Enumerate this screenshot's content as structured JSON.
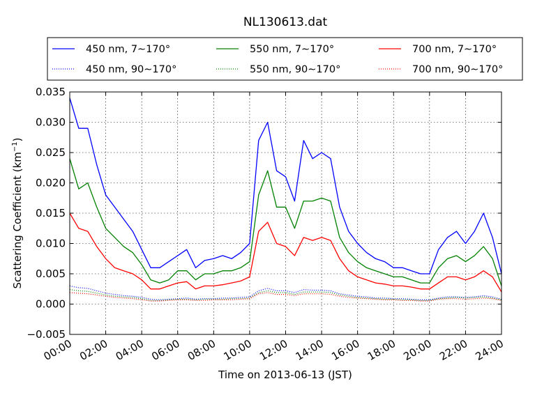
{
  "chart_data": {
    "type": "line",
    "title": "NL130613.dat",
    "xlabel": "Time on 2013-06-13 (JST)",
    "ylabel_prefix": "Scattering Coefficient (km",
    "ylabel_sup": "−1",
    "ylabel_suffix": ")",
    "xlim": [
      0,
      24
    ],
    "ylim": [
      -0.005,
      0.035
    ],
    "grid": true,
    "legend_position": "above plot, 3 columns",
    "x_ticks": [
      "00:00",
      "02:00",
      "04:00",
      "06:00",
      "08:00",
      "10:00",
      "12:00",
      "14:00",
      "16:00",
      "18:00",
      "20:00",
      "22:00",
      "24:00"
    ],
    "y_ticks": [
      "−0.005",
      "0.000",
      "0.005",
      "0.010",
      "0.015",
      "0.020",
      "0.025",
      "0.030",
      "0.035"
    ],
    "x": [
      0,
      0.5,
      1,
      1.5,
      2,
      2.5,
      3,
      3.5,
      4,
      4.5,
      5,
      5.5,
      6,
      6.5,
      7,
      7.5,
      8,
      8.5,
      9,
      9.5,
      10,
      10.5,
      11,
      11.5,
      12,
      12.5,
      13,
      13.5,
      14,
      14.5,
      15,
      15.5,
      16,
      16.5,
      17,
      17.5,
      18,
      18.5,
      19,
      19.5,
      20,
      20.5,
      21,
      21.5,
      22,
      22.5,
      23,
      23.5,
      24
    ],
    "series": [
      {
        "name": "450 nm, 7∼170°",
        "color": "#0000ff",
        "style": "solid",
        "values": [
          0.034,
          0.029,
          0.029,
          0.023,
          0.018,
          0.016,
          0.014,
          0.012,
          0.009,
          0.006,
          0.006,
          0.007,
          0.008,
          0.009,
          0.006,
          0.0072,
          0.0075,
          0.008,
          0.0075,
          0.0085,
          0.01,
          0.027,
          0.03,
          0.022,
          0.021,
          0.017,
          0.027,
          0.024,
          0.025,
          0.024,
          0.016,
          0.012,
          0.01,
          0.0085,
          0.0075,
          0.007,
          0.006,
          0.006,
          0.0055,
          0.005,
          0.005,
          0.009,
          0.011,
          0.012,
          0.01,
          0.012,
          0.015,
          0.011,
          0.005
        ]
      },
      {
        "name": "550 nm, 7∼170°",
        "color": "#008000",
        "style": "solid",
        "values": [
          0.024,
          0.019,
          0.02,
          0.016,
          0.0125,
          0.011,
          0.0095,
          0.0085,
          0.0065,
          0.004,
          0.0035,
          0.004,
          0.0055,
          0.0055,
          0.004,
          0.005,
          0.005,
          0.0055,
          0.0055,
          0.006,
          0.007,
          0.018,
          0.022,
          0.016,
          0.016,
          0.0125,
          0.017,
          0.017,
          0.0175,
          0.017,
          0.011,
          0.0085,
          0.007,
          0.006,
          0.0055,
          0.005,
          0.0045,
          0.0045,
          0.004,
          0.0035,
          0.0035,
          0.006,
          0.0075,
          0.008,
          0.007,
          0.008,
          0.0095,
          0.0075,
          0.003
        ]
      },
      {
        "name": "700 nm, 7∼170°",
        "color": "#ff0000",
        "style": "solid",
        "values": [
          0.015,
          0.0125,
          0.012,
          0.0095,
          0.0075,
          0.006,
          0.0055,
          0.005,
          0.004,
          0.0025,
          0.0025,
          0.003,
          0.0035,
          0.0037,
          0.0025,
          0.003,
          0.003,
          0.0032,
          0.0035,
          0.0038,
          0.0045,
          0.012,
          0.0135,
          0.01,
          0.0095,
          0.008,
          0.011,
          0.0105,
          0.011,
          0.0105,
          0.0075,
          0.0055,
          0.0045,
          0.004,
          0.0035,
          0.0033,
          0.003,
          0.003,
          0.0028,
          0.0025,
          0.0025,
          0.0035,
          0.0045,
          0.0045,
          0.004,
          0.0045,
          0.0055,
          0.0045,
          0.002
        ]
      },
      {
        "name": "450 nm, 90∼170°",
        "color": "#0000ff",
        "style": "dotted",
        "values": [
          0.003,
          0.0027,
          0.0026,
          0.0022,
          0.0018,
          0.0016,
          0.0014,
          0.0013,
          0.0011,
          0.0008,
          0.0007,
          0.0008,
          0.0009,
          0.001,
          0.0008,
          0.0009,
          0.0009,
          0.001,
          0.001,
          0.0011,
          0.0012,
          0.0022,
          0.0026,
          0.0022,
          0.0022,
          0.0019,
          0.0024,
          0.0023,
          0.0023,
          0.0022,
          0.0017,
          0.0015,
          0.0013,
          0.0012,
          0.001,
          0.001,
          0.0009,
          0.0009,
          0.0008,
          0.0007,
          0.0007,
          0.001,
          0.0012,
          0.0012,
          0.0011,
          0.0012,
          0.0014,
          0.0012,
          0.0008
        ]
      },
      {
        "name": "550 nm, 90∼170°",
        "color": "#008000",
        "style": "dotted",
        "values": [
          0.0024,
          0.0022,
          0.0021,
          0.0018,
          0.0015,
          0.0013,
          0.0012,
          0.0011,
          0.0009,
          0.0006,
          0.0006,
          0.0007,
          0.0008,
          0.0008,
          0.0007,
          0.0008,
          0.0008,
          0.0008,
          0.0009,
          0.0009,
          0.001,
          0.0019,
          0.0022,
          0.0019,
          0.0019,
          0.0016,
          0.002,
          0.002,
          0.002,
          0.0019,
          0.0015,
          0.0013,
          0.0011,
          0.001,
          0.0009,
          0.0008,
          0.0008,
          0.0007,
          0.0007,
          0.0006,
          0.0006,
          0.0009,
          0.001,
          0.0011,
          0.001,
          0.0011,
          0.0012,
          0.001,
          0.0007
        ]
      },
      {
        "name": "700 nm, 90∼170°",
        "color": "#ff0000",
        "style": "dotted",
        "values": [
          0.0019,
          0.0018,
          0.0017,
          0.0015,
          0.0013,
          0.0011,
          0.001,
          0.0009,
          0.0007,
          0.0005,
          0.0005,
          0.0006,
          0.0007,
          0.0007,
          0.0006,
          0.0006,
          0.0007,
          0.0007,
          0.0007,
          0.0008,
          0.0009,
          0.0017,
          0.0019,
          0.0016,
          0.0016,
          0.0014,
          0.0017,
          0.0017,
          0.0017,
          0.0016,
          0.0013,
          0.0011,
          0.001,
          0.0009,
          0.0008,
          0.0007,
          0.0007,
          0.0006,
          0.0006,
          0.0005,
          0.0005,
          0.0008,
          0.0009,
          0.0009,
          0.0008,
          0.0009,
          0.001,
          0.0009,
          0.0006
        ]
      }
    ]
  }
}
